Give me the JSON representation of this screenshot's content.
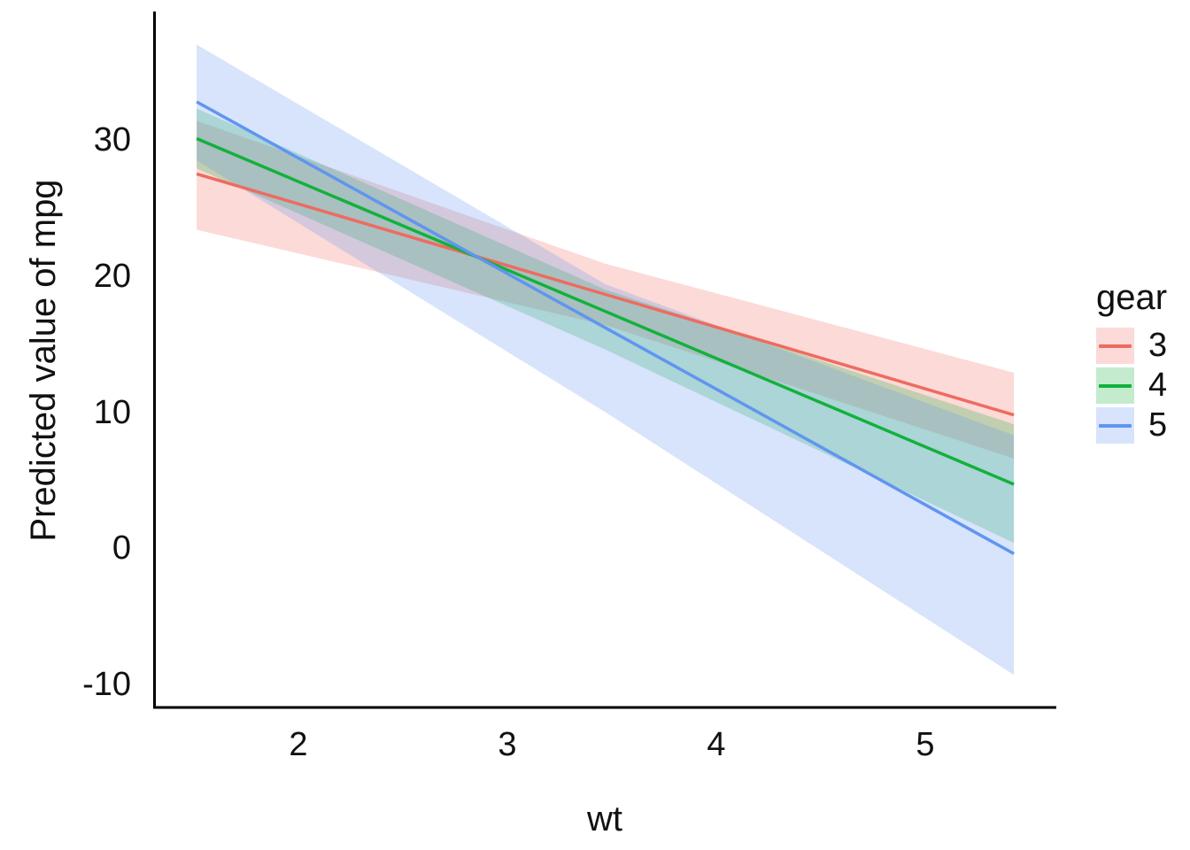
{
  "figure": {
    "x_axis_title": "wt",
    "y_axis_title": "Predicted value of mpg"
  },
  "chart_data": {
    "type": "line",
    "title": "",
    "xlabel": "wt",
    "ylabel": "Predicted value of mpg",
    "xlim": [
      1.31,
      5.63
    ],
    "ylim": [
      -11.8,
      39.4
    ],
    "x_ticks": [
      "2",
      "3",
      "4",
      "5"
    ],
    "y_ticks": [
      "30",
      "20",
      "10",
      "0",
      "-10"
    ],
    "grid": false,
    "axis_line_color": "#000000",
    "legend": {
      "title": "gear",
      "position": "right"
    },
    "band_opacity": 0.25,
    "series": [
      {
        "name": "3",
        "color": "#EE6B60",
        "x": [
          1.513,
          3.469,
          5.424
        ],
        "y": [
          27.5,
          18.65,
          9.8
        ],
        "ci_upper": [
          31.4,
          20.9,
          12.9
        ],
        "ci_lower": [
          23.4,
          16.4,
          6.6
        ]
      },
      {
        "name": "4",
        "color": "#12B13C",
        "x": [
          1.513,
          3.469,
          5.424
        ],
        "y": [
          30.1,
          17.4,
          4.7
        ],
        "ci_upper": [
          32.3,
          19.0,
          9.1
        ],
        "ci_lower": [
          27.9,
          14.6,
          0.4
        ]
      },
      {
        "name": "5",
        "color": "#6095F0",
        "x": [
          1.513,
          3.469,
          5.424
        ],
        "y": [
          32.8,
          16.2,
          -0.4
        ],
        "ci_upper": [
          37.0,
          19.4,
          8.3
        ],
        "ci_lower": [
          28.5,
          10.0,
          -9.3
        ]
      }
    ]
  }
}
